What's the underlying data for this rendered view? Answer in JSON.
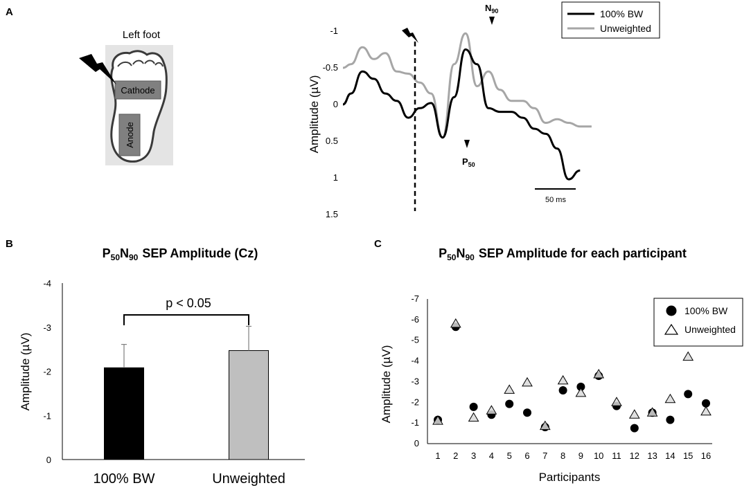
{
  "panels": {
    "a_label": "A",
    "b_label": "B",
    "c_label": "C"
  },
  "foot": {
    "title": "Left foot",
    "cathode": "Cathode",
    "anode": "Anode"
  },
  "chart_data": [
    {
      "id": "waveform",
      "type": "line",
      "ylabel": "Amplitude (µV)",
      "yticks": [
        "-1",
        "-0.5",
        "0",
        "0.5",
        "1",
        "1.5"
      ],
      "ylim": [
        -1.05,
        1.5
      ],
      "y_inverted": true,
      "x_ms": [
        -52,
        -45,
        -35,
        -25,
        -15,
        -5,
        5,
        15,
        25,
        35,
        45,
        55,
        65,
        75,
        85,
        95,
        105,
        115,
        125,
        135,
        145,
        155,
        165,
        175,
        185,
        195,
        205
      ],
      "series": [
        {
          "name": "100% BW",
          "color": "#000000",
          "values": [
            0.0,
            -0.15,
            -0.45,
            -0.35,
            -0.15,
            -0.05,
            0.18,
            0.05,
            -0.02,
            0.45,
            -0.1,
            -0.75,
            -0.55,
            0.05,
            0.1,
            0.1,
            0.18,
            0.33,
            0.4,
            0.6,
            1.02,
            0.9,
            0.85,
            0.85,
            0.85,
            0.85,
            0.85
          ]
        },
        {
          "name": "Unweighted",
          "color": "#a6a6a6",
          "values": [
            -0.5,
            -0.55,
            -0.78,
            -0.62,
            -0.7,
            -0.45,
            -0.42,
            -0.3,
            -0.15,
            0.45,
            -0.55,
            -0.97,
            -0.25,
            -0.45,
            -0.2,
            -0.05,
            -0.05,
            0.05,
            0.25,
            0.2,
            0.25,
            0.3,
            0.3,
            0.3,
            0.3,
            0.3,
            0.3
          ]
        }
      ],
      "annotations": {
        "p50": "P",
        "p50_sub": "50",
        "n90": "N",
        "n90_sub": "90",
        "scale_bar": "50 ms"
      },
      "legend": "top-right"
    },
    {
      "id": "bar",
      "type": "bar",
      "title_p": "P",
      "title_p_sub": "50",
      "title_n": "N",
      "title_n_sub": "90",
      "title_rest": "SEP Amplitude (Cz)",
      "categories": [
        "100% BW",
        "Unweighted"
      ],
      "values": [
        -2.08,
        -2.47
      ],
      "errors": [
        0.53,
        0.55
      ],
      "colors": [
        "#000000",
        "#bfbfbf"
      ],
      "ylabel": "Amplitude (µV)",
      "yticks": [
        "-4",
        "-3",
        "-2",
        "-1",
        "0"
      ],
      "ylim": [
        -4,
        0
      ],
      "significance": "p < 0.05"
    },
    {
      "id": "scatter",
      "type": "scatter",
      "title_p": "P",
      "title_p_sub": "50",
      "title_n": "N",
      "title_n_sub": "90",
      "title_rest": "SEP Amplitude for each participant",
      "xlabel": "Participants",
      "ylabel": "Amplitude (µV)",
      "categories": [
        "1",
        "2",
        "3",
        "4",
        "5",
        "6",
        "7",
        "8",
        "9",
        "10",
        "11",
        "12",
        "13",
        "14",
        "15",
        "16"
      ],
      "yticks": [
        "-7",
        "-6",
        "-5",
        "-4",
        "-3",
        "-2",
        "-1",
        "0"
      ],
      "ylim": [
        -7,
        0
      ],
      "series": [
        {
          "name": "100% BW",
          "marker": "circle",
          "values": [
            -1.15,
            -5.65,
            -1.78,
            -1.4,
            -1.92,
            -1.5,
            -0.8,
            -2.58,
            -2.75,
            -3.28,
            -1.82,
            -0.75,
            -1.5,
            -1.15,
            -2.4,
            -1.95
          ]
        },
        {
          "name": "Unweighted",
          "marker": "triangle",
          "values": [
            -1.1,
            -5.8,
            -1.25,
            -1.6,
            -2.6,
            -2.95,
            -0.85,
            -3.05,
            -2.45,
            -3.35,
            -2.0,
            -1.4,
            -1.5,
            -2.15,
            -4.2,
            -1.55
          ]
        }
      ],
      "legend": "top-right"
    }
  ]
}
